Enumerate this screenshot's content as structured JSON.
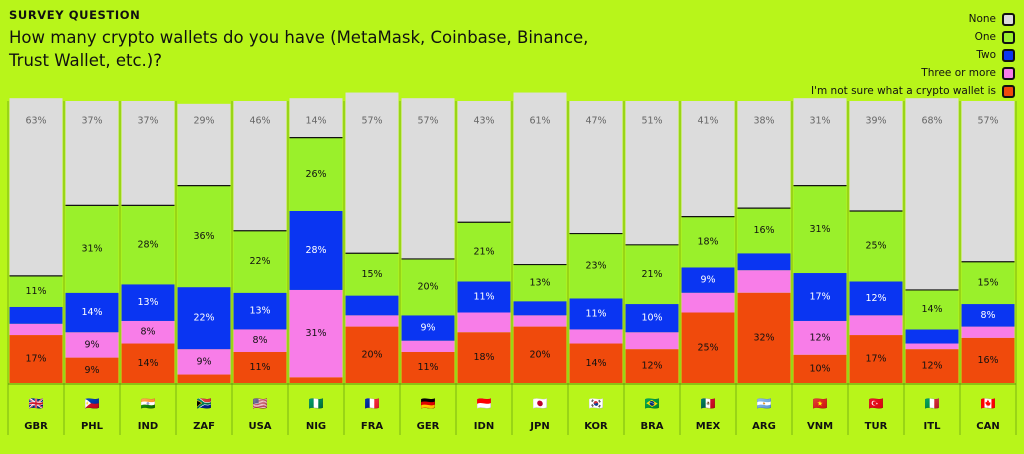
{
  "header": {
    "eyebrow": "SURVEY QUESTION",
    "question": "How many crypto wallets do you have (MetaMask, Coinbase, Binance, Trust Wallet, etc.)?"
  },
  "legend": [
    {
      "label": "None",
      "color": "#dcdcdc"
    },
    {
      "label": "One",
      "color": "#9af02b"
    },
    {
      "label": "Two",
      "color": "#0a35f2"
    },
    {
      "label": "Three or more",
      "color": "#f87de8"
    },
    {
      "label": "I'm not sure what a crypto wallet is",
      "color": "#f04a0c"
    }
  ],
  "chart_data": {
    "type": "bar",
    "stacked": true,
    "unit": "%",
    "legend_position": "top-right",
    "categories": [
      "GBR",
      "PHL",
      "IND",
      "ZAF",
      "USA",
      "NIG",
      "FRA",
      "GER",
      "IDN",
      "JPN",
      "KOR",
      "BRA",
      "MEX",
      "ARG",
      "VNM",
      "TUR",
      "ITL",
      "CAN"
    ],
    "flags": [
      "🇬🇧",
      "🇵🇭",
      "🇮🇳",
      "🇿🇦",
      "🇺🇸",
      "🇳🇬",
      "🇫🇷",
      "🇩🇪",
      "🇮🇩",
      "🇯🇵",
      "🇰🇷",
      "🇧🇷",
      "🇲🇽",
      "🇦🇷",
      "🇻🇳",
      "🇹🇷",
      "🇮🇹",
      "🇨🇦"
    ],
    "series": [
      {
        "name": "None",
        "color": "#dcdcdc",
        "values": [
          63,
          37,
          37,
          29,
          46,
          14,
          57,
          57,
          43,
          61,
          47,
          51,
          41,
          38,
          31,
          39,
          68,
          57
        ],
        "labels": [
          "63%",
          "37%",
          "37%",
          "29%",
          "46%",
          "14%",
          "57%",
          "57%",
          "43%",
          "61%",
          "47%",
          "51%",
          "41%",
          "38%",
          "31%",
          "39%",
          "68%",
          "57%"
        ]
      },
      {
        "name": "One",
        "color": "#9af02b",
        "values": [
          11,
          31,
          28,
          36,
          22,
          26,
          15,
          20,
          21,
          13,
          23,
          21,
          18,
          16,
          31,
          25,
          14,
          15
        ],
        "labels": [
          "11%",
          "31%",
          "28%",
          "36%",
          "22%",
          "26%",
          "15%",
          "20%",
          "21%",
          "13%",
          "23%",
          "21%",
          "18%",
          "16%",
          "31%",
          "25%",
          "14%",
          "15%"
        ]
      },
      {
        "name": "Two",
        "color": "#0a35f2",
        "values": [
          6,
          14,
          13,
          22,
          13,
          28,
          7,
          9,
          11,
          5,
          11,
          10,
          9,
          6,
          17,
          12,
          5,
          8
        ],
        "labels": [
          "",
          "14%",
          "13%",
          "22%",
          "13%",
          "28%",
          "",
          "9%",
          "11%",
          "",
          "11%",
          "10%",
          "9%",
          "",
          "17%",
          "12%",
          "",
          "8%"
        ]
      },
      {
        "name": "Three or more",
        "color": "#f87de8",
        "values": [
          4,
          9,
          8,
          9,
          8,
          31,
          4,
          4,
          7,
          4,
          5,
          6,
          7,
          8,
          12,
          7,
          2,
          4
        ],
        "labels": [
          "",
          "9%",
          "8%",
          "9%",
          "8%",
          "31%",
          "",
          "",
          "",
          "",
          "",
          "",
          "",
          "",
          "12%",
          "",
          "",
          ""
        ]
      },
      {
        "name": "I'm not sure what a crypto wallet is",
        "color": "#f04a0c",
        "values": [
          17,
          9,
          14,
          3,
          11,
          2,
          20,
          11,
          18,
          20,
          14,
          12,
          25,
          32,
          10,
          17,
          12,
          16
        ],
        "labels": [
          "17%",
          "9%",
          "14%",
          "",
          "11%",
          "",
          "20%",
          "11%",
          "18%",
          "20%",
          "14%",
          "12%",
          "25%",
          "32%",
          "10%",
          "17%",
          "12%",
          "16%"
        ]
      }
    ],
    "ylim": [
      0,
      100
    ]
  }
}
